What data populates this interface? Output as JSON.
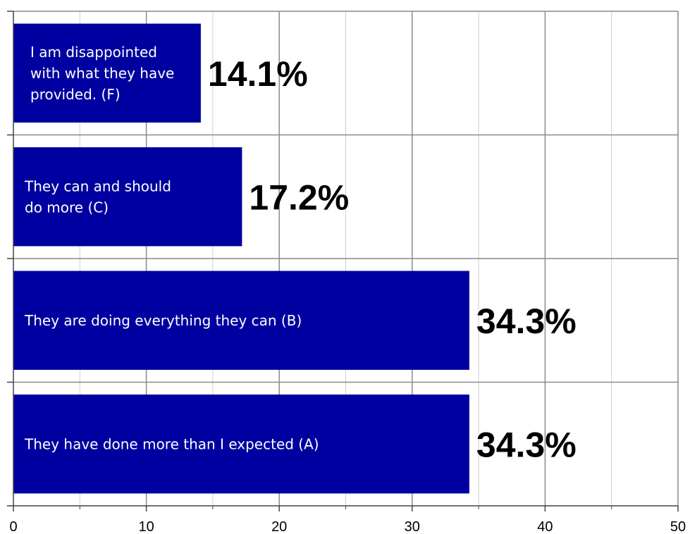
{
  "chart_data": {
    "type": "bar",
    "orientation": "horizontal",
    "title": "",
    "xlabel": "",
    "ylabel": "",
    "xlim": [
      0,
      50
    ],
    "x_ticks": [
      "0",
      "10",
      "20",
      "30",
      "40",
      "50"
    ],
    "grid": true,
    "bar_color": "#0000a0",
    "categories": [
      [
        "I am disappointed",
        "with what they have",
        "provided.  (F)"
      ],
      [
        "They can and should",
        "do more (C)"
      ],
      [
        "They are doing everything they can (B)"
      ],
      [
        "They have done more than I expected (A)"
      ]
    ],
    "values": [
      14.1,
      17.2,
      34.3,
      34.3
    ],
    "value_labels": [
      "14.1%",
      "17.2%",
      "34.3%",
      "34.3%"
    ]
  }
}
